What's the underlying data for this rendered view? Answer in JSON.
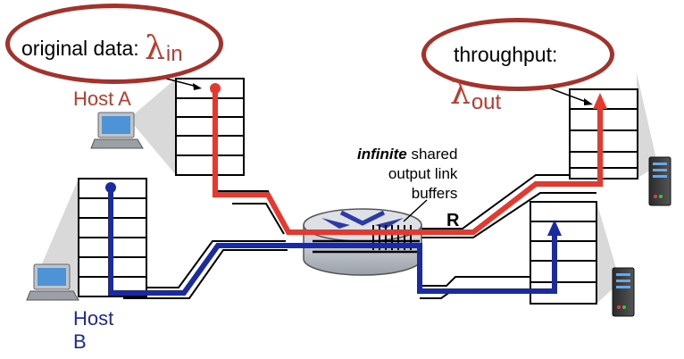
{
  "labels": {
    "original_data": "original data:",
    "lambda_in_symbol": "λ",
    "lambda_in_sub": "in",
    "throughput": "throughput:",
    "lambda_out_symbol": "λ",
    "lambda_out_sub": "out",
    "host_a": "Host A",
    "host_b_line1": "Host",
    "host_b_line2": "B",
    "infinite": "infinite",
    "shared": " shared",
    "output_link": "output link",
    "buffers": "buffers",
    "router_link": "R"
  },
  "colors": {
    "host_a_flow": "#e8382e",
    "host_b_flow": "#1a2aa0",
    "ellipse": "#a6302a",
    "host_a_label": "#c1392b",
    "host_b_label": "#1a2aa0"
  },
  "icons": [
    "laptop-icon",
    "laptop-icon",
    "server-icon",
    "server-icon",
    "router-icon"
  ]
}
